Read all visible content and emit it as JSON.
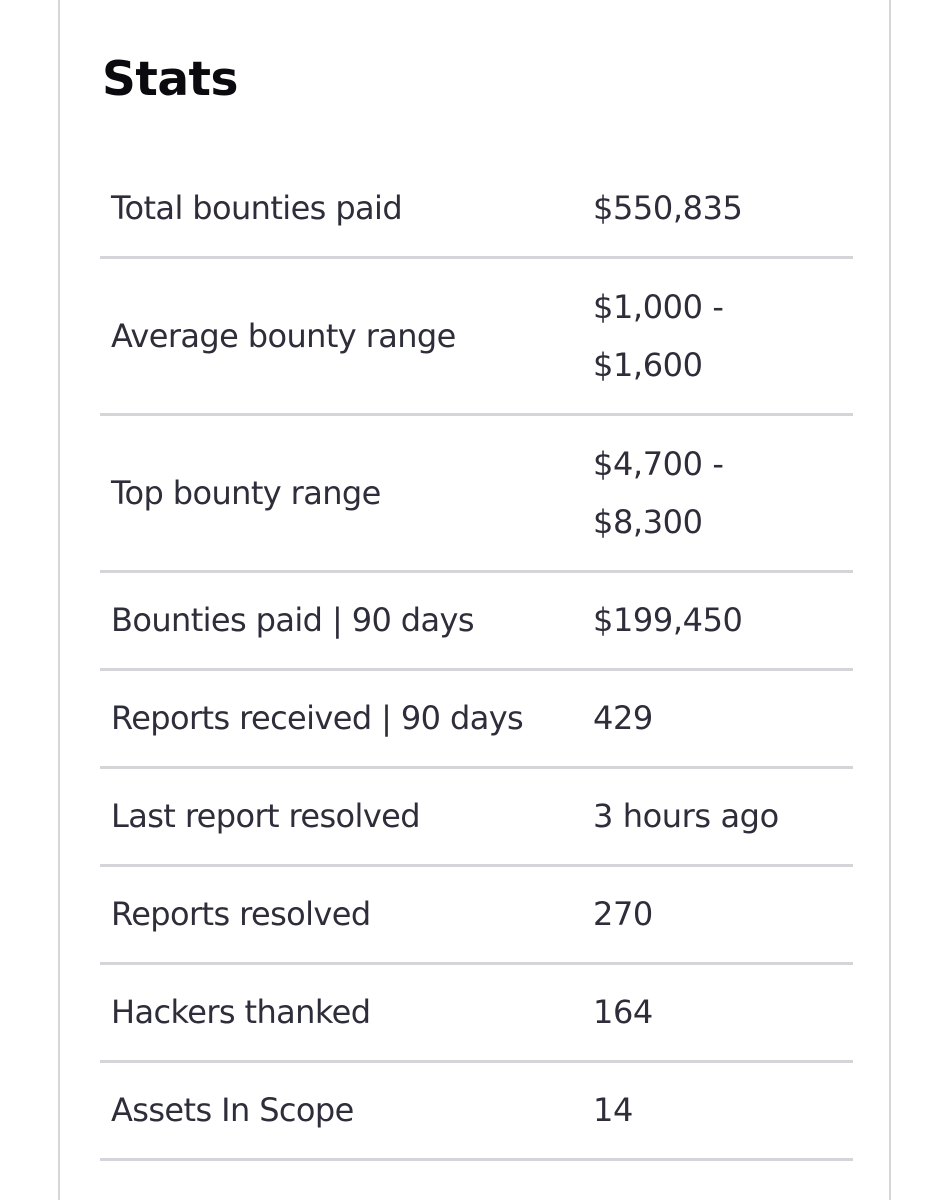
{
  "section": {
    "title": "Stats"
  },
  "stats": [
    {
      "label": "Total bounties paid",
      "value": [
        "$550,835"
      ]
    },
    {
      "label": "Average bounty range",
      "value": [
        "$1,000 -",
        "$1,600"
      ]
    },
    {
      "label": "Top bounty range",
      "value": [
        "$4,700 -",
        "$8,300"
      ]
    },
    {
      "label": "Bounties paid | 90 days",
      "value": [
        "$199,450"
      ]
    },
    {
      "label": "Reports received | 90 days",
      "value": [
        "429"
      ]
    },
    {
      "label": "Last report resolved",
      "value": [
        "3 hours ago"
      ]
    },
    {
      "label": "Reports resolved",
      "value": [
        "270"
      ]
    },
    {
      "label": "Hackers thanked",
      "value": [
        "164"
      ]
    },
    {
      "label": "Assets In Scope",
      "value": [
        "14"
      ]
    }
  ]
}
